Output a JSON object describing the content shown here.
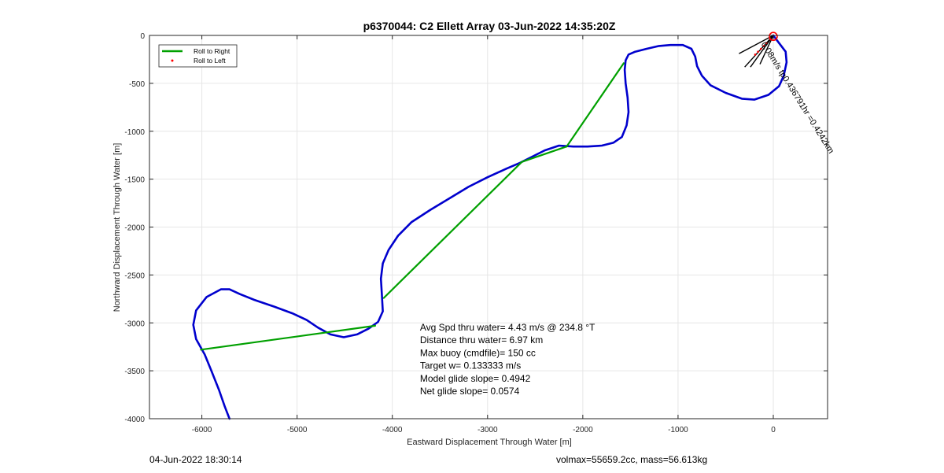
{
  "chart_data": {
    "type": "line",
    "title": "p6370044: C2 Ellett Array 03-Jun-2022 14:35:20Z",
    "xlabel": "Eastward Displacement Through Water [m]",
    "ylabel": "Northward Displacement Through Water [m]",
    "xlim": [
      -6550,
      570
    ],
    "ylim": [
      -4000,
      0
    ],
    "xticks": [
      -6000,
      -5000,
      -4000,
      -3000,
      -2000,
      -1000,
      0
    ],
    "yticks": [
      0,
      -500,
      -1000,
      -1500,
      -2000,
      -2500,
      -3000,
      -3500,
      -4000
    ],
    "grid": true,
    "legend_position": "top-left",
    "legend": [
      {
        "label": "Roll to Right",
        "color": "#00a000",
        "marker": "line"
      },
      {
        "label": "Roll to Left",
        "color": "#ff0000",
        "marker": "dot"
      }
    ],
    "series": [
      {
        "key": "track",
        "color": "#0000cd",
        "segments": [
          [
            [
              0,
              0
            ],
            [
              60,
              -80
            ],
            [
              130,
              -170
            ],
            [
              140,
              -280
            ],
            [
              110,
              -420
            ],
            [
              60,
              -530
            ],
            [
              -50,
              -620
            ],
            [
              -200,
              -670
            ],
            [
              -330,
              -660
            ],
            [
              -500,
              -600
            ],
            [
              -660,
              -520
            ],
            [
              -750,
              -420
            ],
            [
              -800,
              -320
            ],
            [
              -820,
              -220
            ],
            [
              -860,
              -140
            ],
            [
              -950,
              -100
            ],
            [
              -1080,
              -100
            ],
            [
              -1200,
              -110
            ],
            [
              -1330,
              -140
            ],
            [
              -1450,
              -170
            ],
            [
              -1520,
              -200
            ],
            [
              -1550,
              -260
            ],
            [
              -1560,
              -360
            ],
            [
              -1550,
              -500
            ],
            [
              -1530,
              -650
            ],
            [
              -1520,
              -800
            ],
            [
              -1540,
              -940
            ],
            [
              -1590,
              -1060
            ],
            [
              -1680,
              -1120
            ],
            [
              -1800,
              -1150
            ],
            [
              -1950,
              -1160
            ],
            [
              -2100,
              -1160
            ],
            [
              -2250,
              -1150
            ],
            [
              -2400,
              -1200
            ],
            [
              -2540,
              -1270
            ],
            [
              -2660,
              -1330
            ],
            [
              -2800,
              -1390
            ],
            [
              -3000,
              -1480
            ],
            [
              -3200,
              -1580
            ],
            [
              -3400,
              -1700
            ],
            [
              -3600,
              -1820
            ],
            [
              -3800,
              -1950
            ],
            [
              -3940,
              -2090
            ],
            [
              -4040,
              -2240
            ],
            [
              -4100,
              -2380
            ],
            [
              -4120,
              -2540
            ],
            [
              -4110,
              -2700
            ],
            [
              -4100,
              -2880
            ],
            [
              -4150,
              -2990
            ],
            [
              -4250,
              -3060
            ],
            [
              -4370,
              -3120
            ],
            [
              -4510,
              -3150
            ],
            [
              -4650,
              -3120
            ],
            [
              -4780,
              -3050
            ],
            [
              -4900,
              -2970
            ],
            [
              -5050,
              -2900
            ],
            [
              -5240,
              -2830
            ],
            [
              -5450,
              -2760
            ],
            [
              -5600,
              -2700
            ],
            [
              -5710,
              -2650
            ],
            [
              -5800,
              -2650
            ],
            [
              -5950,
              -2730
            ],
            [
              -6060,
              -2870
            ],
            [
              -6090,
              -3020
            ],
            [
              -6060,
              -3170
            ],
            [
              -5970,
              -3330
            ],
            [
              -5900,
              -3500
            ],
            [
              -5820,
              -3700
            ],
            [
              -5760,
              -3870
            ],
            [
              -5710,
              -4000
            ]
          ]
        ]
      },
      {
        "key": "roll-right",
        "color": "#00a000",
        "segments": [
          [
            [
              -1570,
              -290
            ],
            [
              -2170,
              -1160
            ]
          ],
          [
            [
              -2170,
              -1160
            ],
            [
              -2640,
              -1320
            ],
            [
              -4090,
              -2740
            ]
          ],
          [
            [
              -4180,
              -3030
            ],
            [
              -6010,
              -3280
            ]
          ]
        ]
      }
    ],
    "roll_left_points": [
      [
        -30,
        -40
      ],
      [
        -70,
        -80
      ],
      [
        -100,
        -110
      ],
      [
        -130,
        -140
      ],
      [
        -160,
        -170
      ],
      [
        -190,
        -200
      ]
    ],
    "start_marker": {
      "x": 0,
      "y": -10,
      "color": "#ff0000"
    },
    "current_vectors": [
      [
        [
          0,
          0
        ],
        [
          -360,
          -190
        ]
      ],
      [
        [
          0,
          0
        ],
        [
          -300,
          -330
        ]
      ],
      [
        [
          0,
          0
        ],
        [
          -240,
          -330
        ]
      ],
      [
        [
          0,
          0
        ],
        [
          -140,
          -300
        ]
      ]
    ],
    "current_annotation": {
      "text": "0.08m/s tp0.436791hr =0.4242km",
      "x": -130,
      "y": -90,
      "angle_deg": 58
    },
    "stats": [
      "Avg Spd thru water=  4.43 m/s @ 234.8 °T",
      "Distance thru water=  6.97 km",
      "Max buoy (cmdfile)= 150 cc",
      "Target w= 0.133333 m/s",
      "Model glide slope= 0.4942",
      "Net glide slope= 0.0574"
    ],
    "stats_anchor": {
      "x": -3710,
      "y": -3080
    }
  },
  "footer": {
    "timestamp": "04-Jun-2022 18:30:14",
    "vehicle": "volmax=55659.2cc, mass=56.613kg"
  }
}
